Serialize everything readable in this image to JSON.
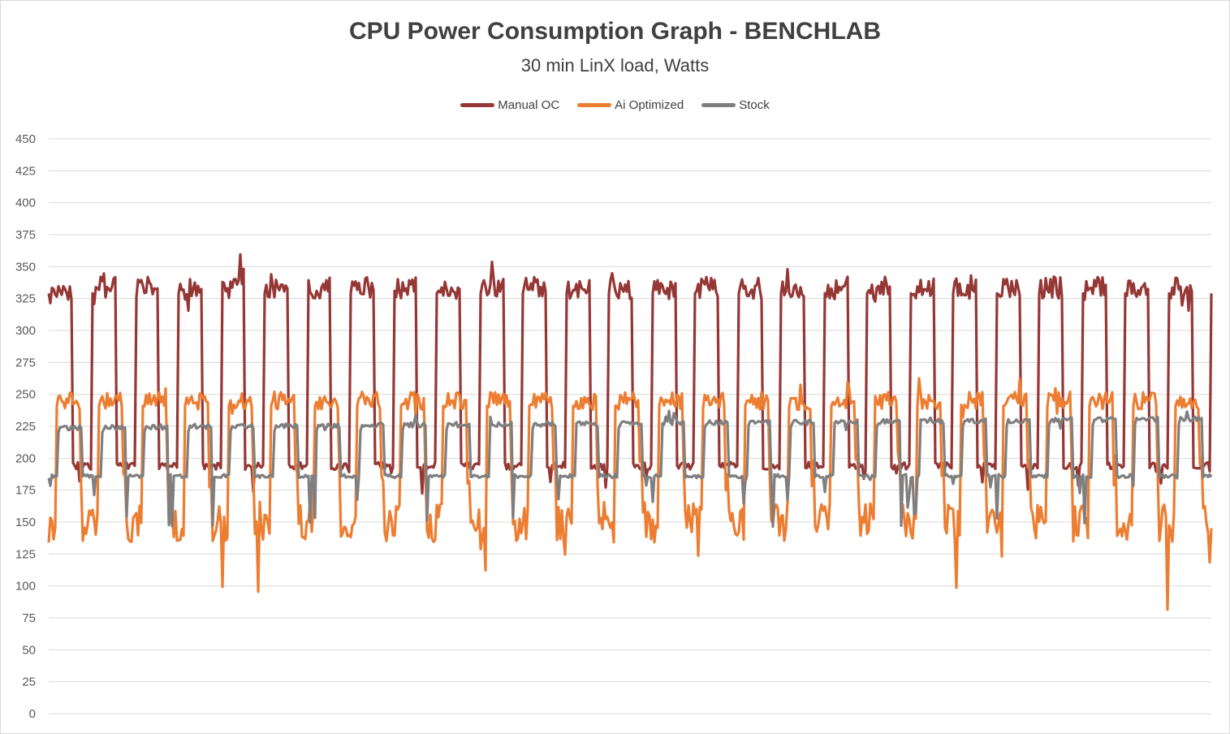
{
  "chart_data": {
    "type": "line",
    "title": "CPU Power Consumption Graph - BENCHLAB",
    "subtitle": "30 min LinX load, Watts",
    "xlabel": "",
    "ylabel": "",
    "ylim": [
      0,
      450
    ],
    "yticks": [
      0,
      25,
      50,
      75,
      100,
      125,
      150,
      175,
      200,
      225,
      250,
      275,
      300,
      325,
      350,
      375,
      400,
      425,
      450
    ],
    "grid": true,
    "legend_position": "top",
    "cycles": 27,
    "series": [
      {
        "name": "Manual OC",
        "color": "#953735",
        "high": 333,
        "low": 194,
        "highNoise": 9,
        "highSpike": 20,
        "lowNoise": 3,
        "lowDip": 20
      },
      {
        "name": "Ai Optimized",
        "color": "#ed7d31",
        "high": 245,
        "low": 150,
        "highNoise": 7,
        "highSpike": 16,
        "lowNoise": 16,
        "lowDip": 55
      },
      {
        "name": "Stock",
        "color": "#7f7f7f",
        "high": 224,
        "low": 186,
        "highNoise": 2,
        "highSpike": 8,
        "lowNoise": 1.5,
        "lowDip": 40
      }
    ]
  }
}
